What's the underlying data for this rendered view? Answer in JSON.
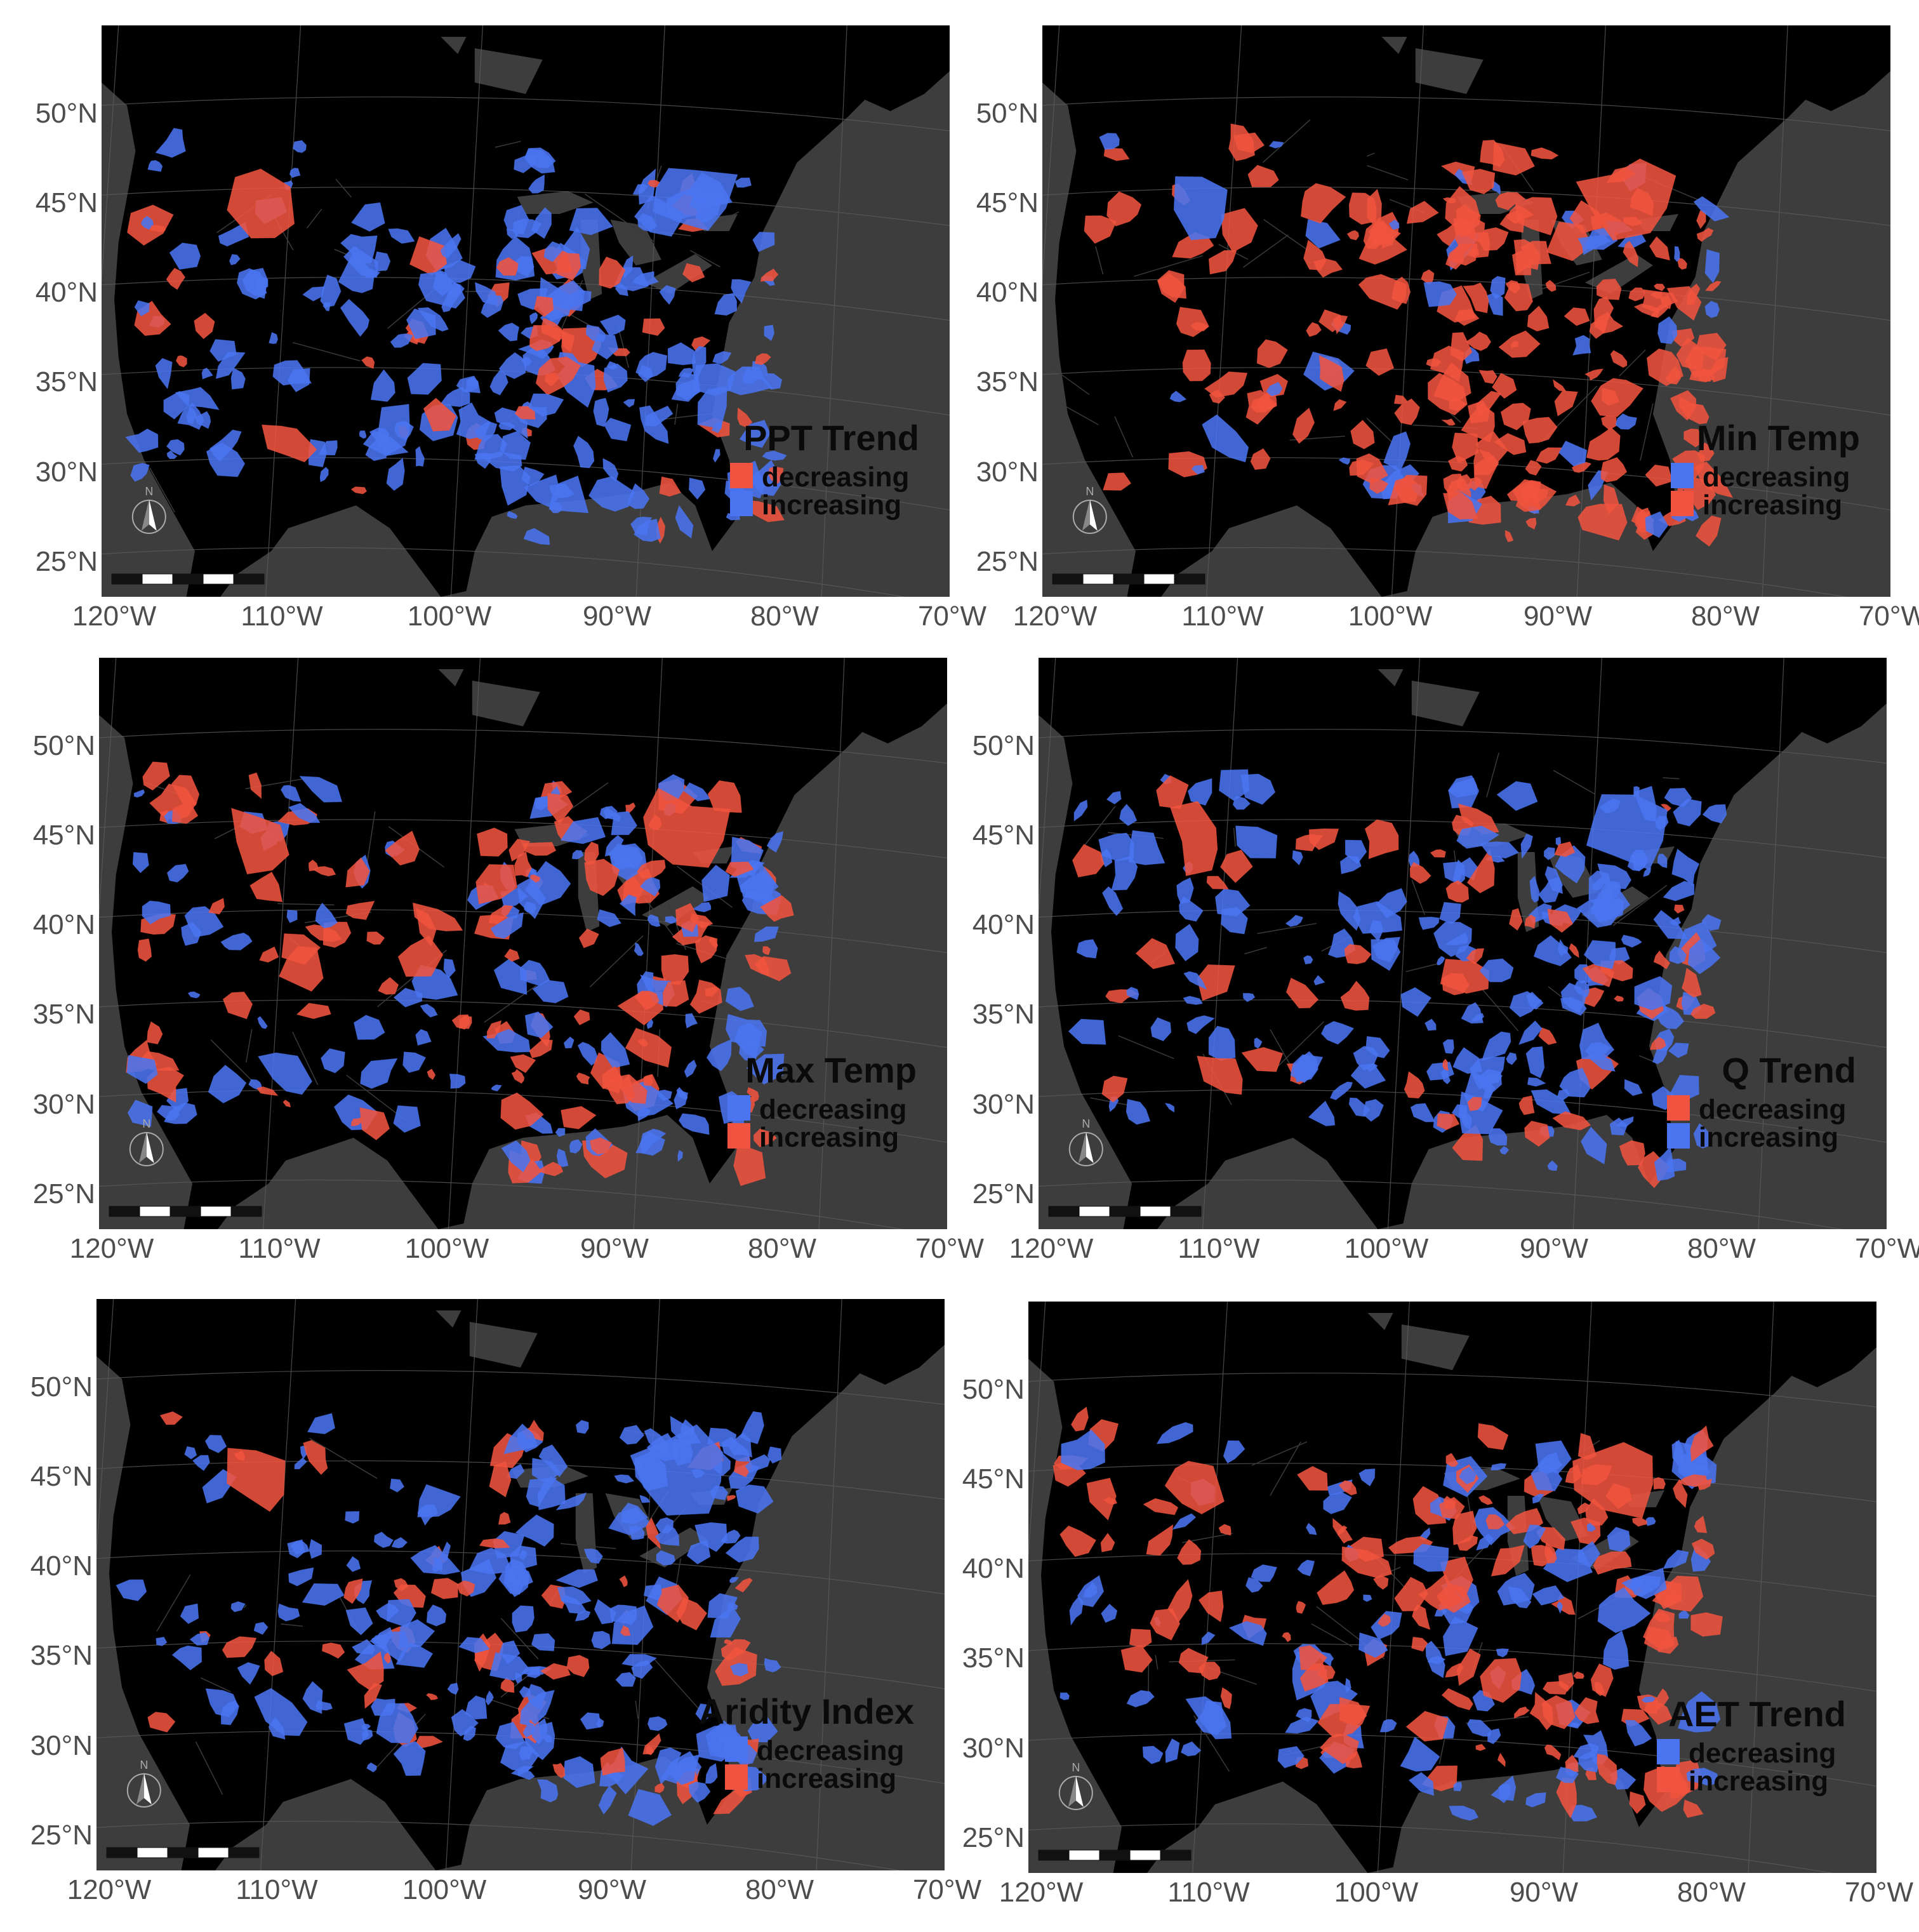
{
  "colors": {
    "background": "#ffffff",
    "ocean": "#3d3d3d",
    "land": "#000000",
    "decreasing_default": "#f0533f",
    "increasing_default": "#4a74f0",
    "tick_text": "#4d4d4d"
  },
  "lat_ticks": [
    "25°N",
    "30°N",
    "35°N",
    "40°N",
    "45°N",
    "50°N"
  ],
  "lon_ticks": [
    "120°W",
    "110°W",
    "100°W",
    "90°W",
    "80°W",
    "70°W"
  ],
  "north_arrow_label": "N",
  "panels": [
    {
      "id": "ppt",
      "title": "PPT Trend",
      "legend": [
        {
          "label": "decreasing",
          "color": "#f0533f"
        },
        {
          "label": "increasing",
          "color": "#4a74f0"
        }
      ],
      "dominant": "increasing"
    },
    {
      "id": "tmin",
      "title": "Min Temp",
      "legend": [
        {
          "label": "decreasing",
          "color": "#4a74f0"
        },
        {
          "label": "increasing",
          "color": "#f0533f"
        }
      ],
      "dominant": "increasing"
    },
    {
      "id": "tmax",
      "title": "Max Temp",
      "legend": [
        {
          "label": "decreasing",
          "color": "#4a74f0"
        },
        {
          "label": "increasing",
          "color": "#f0533f"
        }
      ],
      "dominant": "mixed"
    },
    {
      "id": "q",
      "title": "Q Trend",
      "legend": [
        {
          "label": "decreasing",
          "color": "#f0533f"
        },
        {
          "label": "increasing",
          "color": "#4a74f0"
        }
      ],
      "dominant": "increasing"
    },
    {
      "id": "ai",
      "title": "Aridity Index",
      "legend": [
        {
          "label": "decreasing",
          "color": "#4a74f0"
        },
        {
          "label": "increasing",
          "color": "#f0533f"
        }
      ],
      "dominant": "decreasing"
    },
    {
      "id": "aet",
      "title": "AET Trend",
      "legend": [
        {
          "label": "decreasing",
          "color": "#4a74f0"
        },
        {
          "label": "increasing",
          "color": "#f0533f"
        }
      ],
      "dominant": "mixed"
    }
  ]
}
